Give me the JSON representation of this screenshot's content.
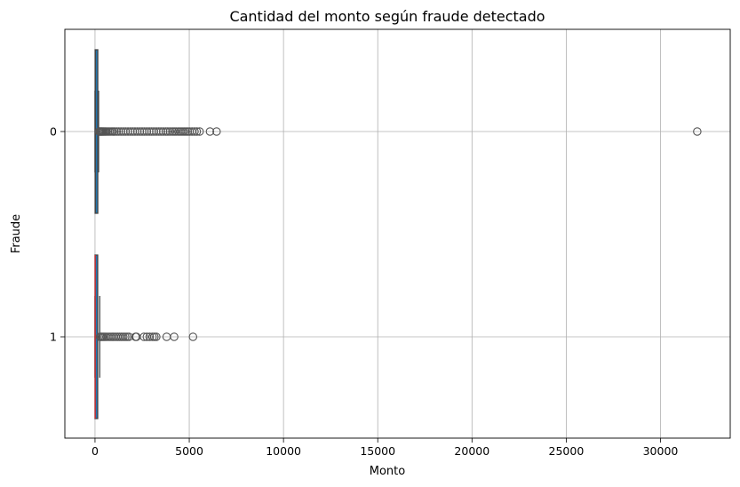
{
  "chart_data": {
    "type": "boxplot",
    "orientation": "horizontal",
    "title": "Cantidad del monto según fraude detectado",
    "xlabel": "Monto",
    "ylabel": "Fraude",
    "xlim": [
      -1600,
      33700
    ],
    "xticks": [
      0,
      5000,
      10000,
      15000,
      20000,
      25000,
      30000
    ],
    "grid": true,
    "categories": [
      "0",
      "1"
    ],
    "box_color": "#1f77b4",
    "median_color_fraud": "#d62728",
    "outlier_color": "#555555",
    "boxes": [
      {
        "category": "0",
        "min": 0,
        "q1": 6,
        "median": 22,
        "q3": 78,
        "whisker_high": 190,
        "outliers": [
          220,
          260,
          300,
          340,
          380,
          430,
          480,
          540,
          600,
          680,
          760,
          850,
          940,
          1040,
          1150,
          1260,
          1380,
          1500,
          1620,
          1750,
          1880,
          2000,
          2120,
          2250,
          2380,
          2500,
          2620,
          2750,
          2880,
          3000,
          3120,
          3250,
          3380,
          3500,
          3620,
          3750,
          3860,
          3980,
          4100,
          4200,
          4300,
          4420,
          4520,
          4620,
          4720,
          4820,
          4920,
          5020,
          5150,
          5280,
          5400,
          5550,
          6100,
          6450,
          31950
        ]
      },
      {
        "category": "1",
        "min": 0,
        "q1": 1,
        "median": 10,
        "q3": 105,
        "whisker_high": 250,
        "outliers": [
          270,
          320,
          380,
          450,
          520,
          600,
          700,
          800,
          900,
          1000,
          1100,
          1200,
          1300,
          1400,
          1500,
          1600,
          1700,
          1800,
          2150,
          2200,
          2600,
          2750,
          2900,
          3050,
          3150,
          3250,
          3800,
          4200,
          5200
        ]
      }
    ]
  }
}
